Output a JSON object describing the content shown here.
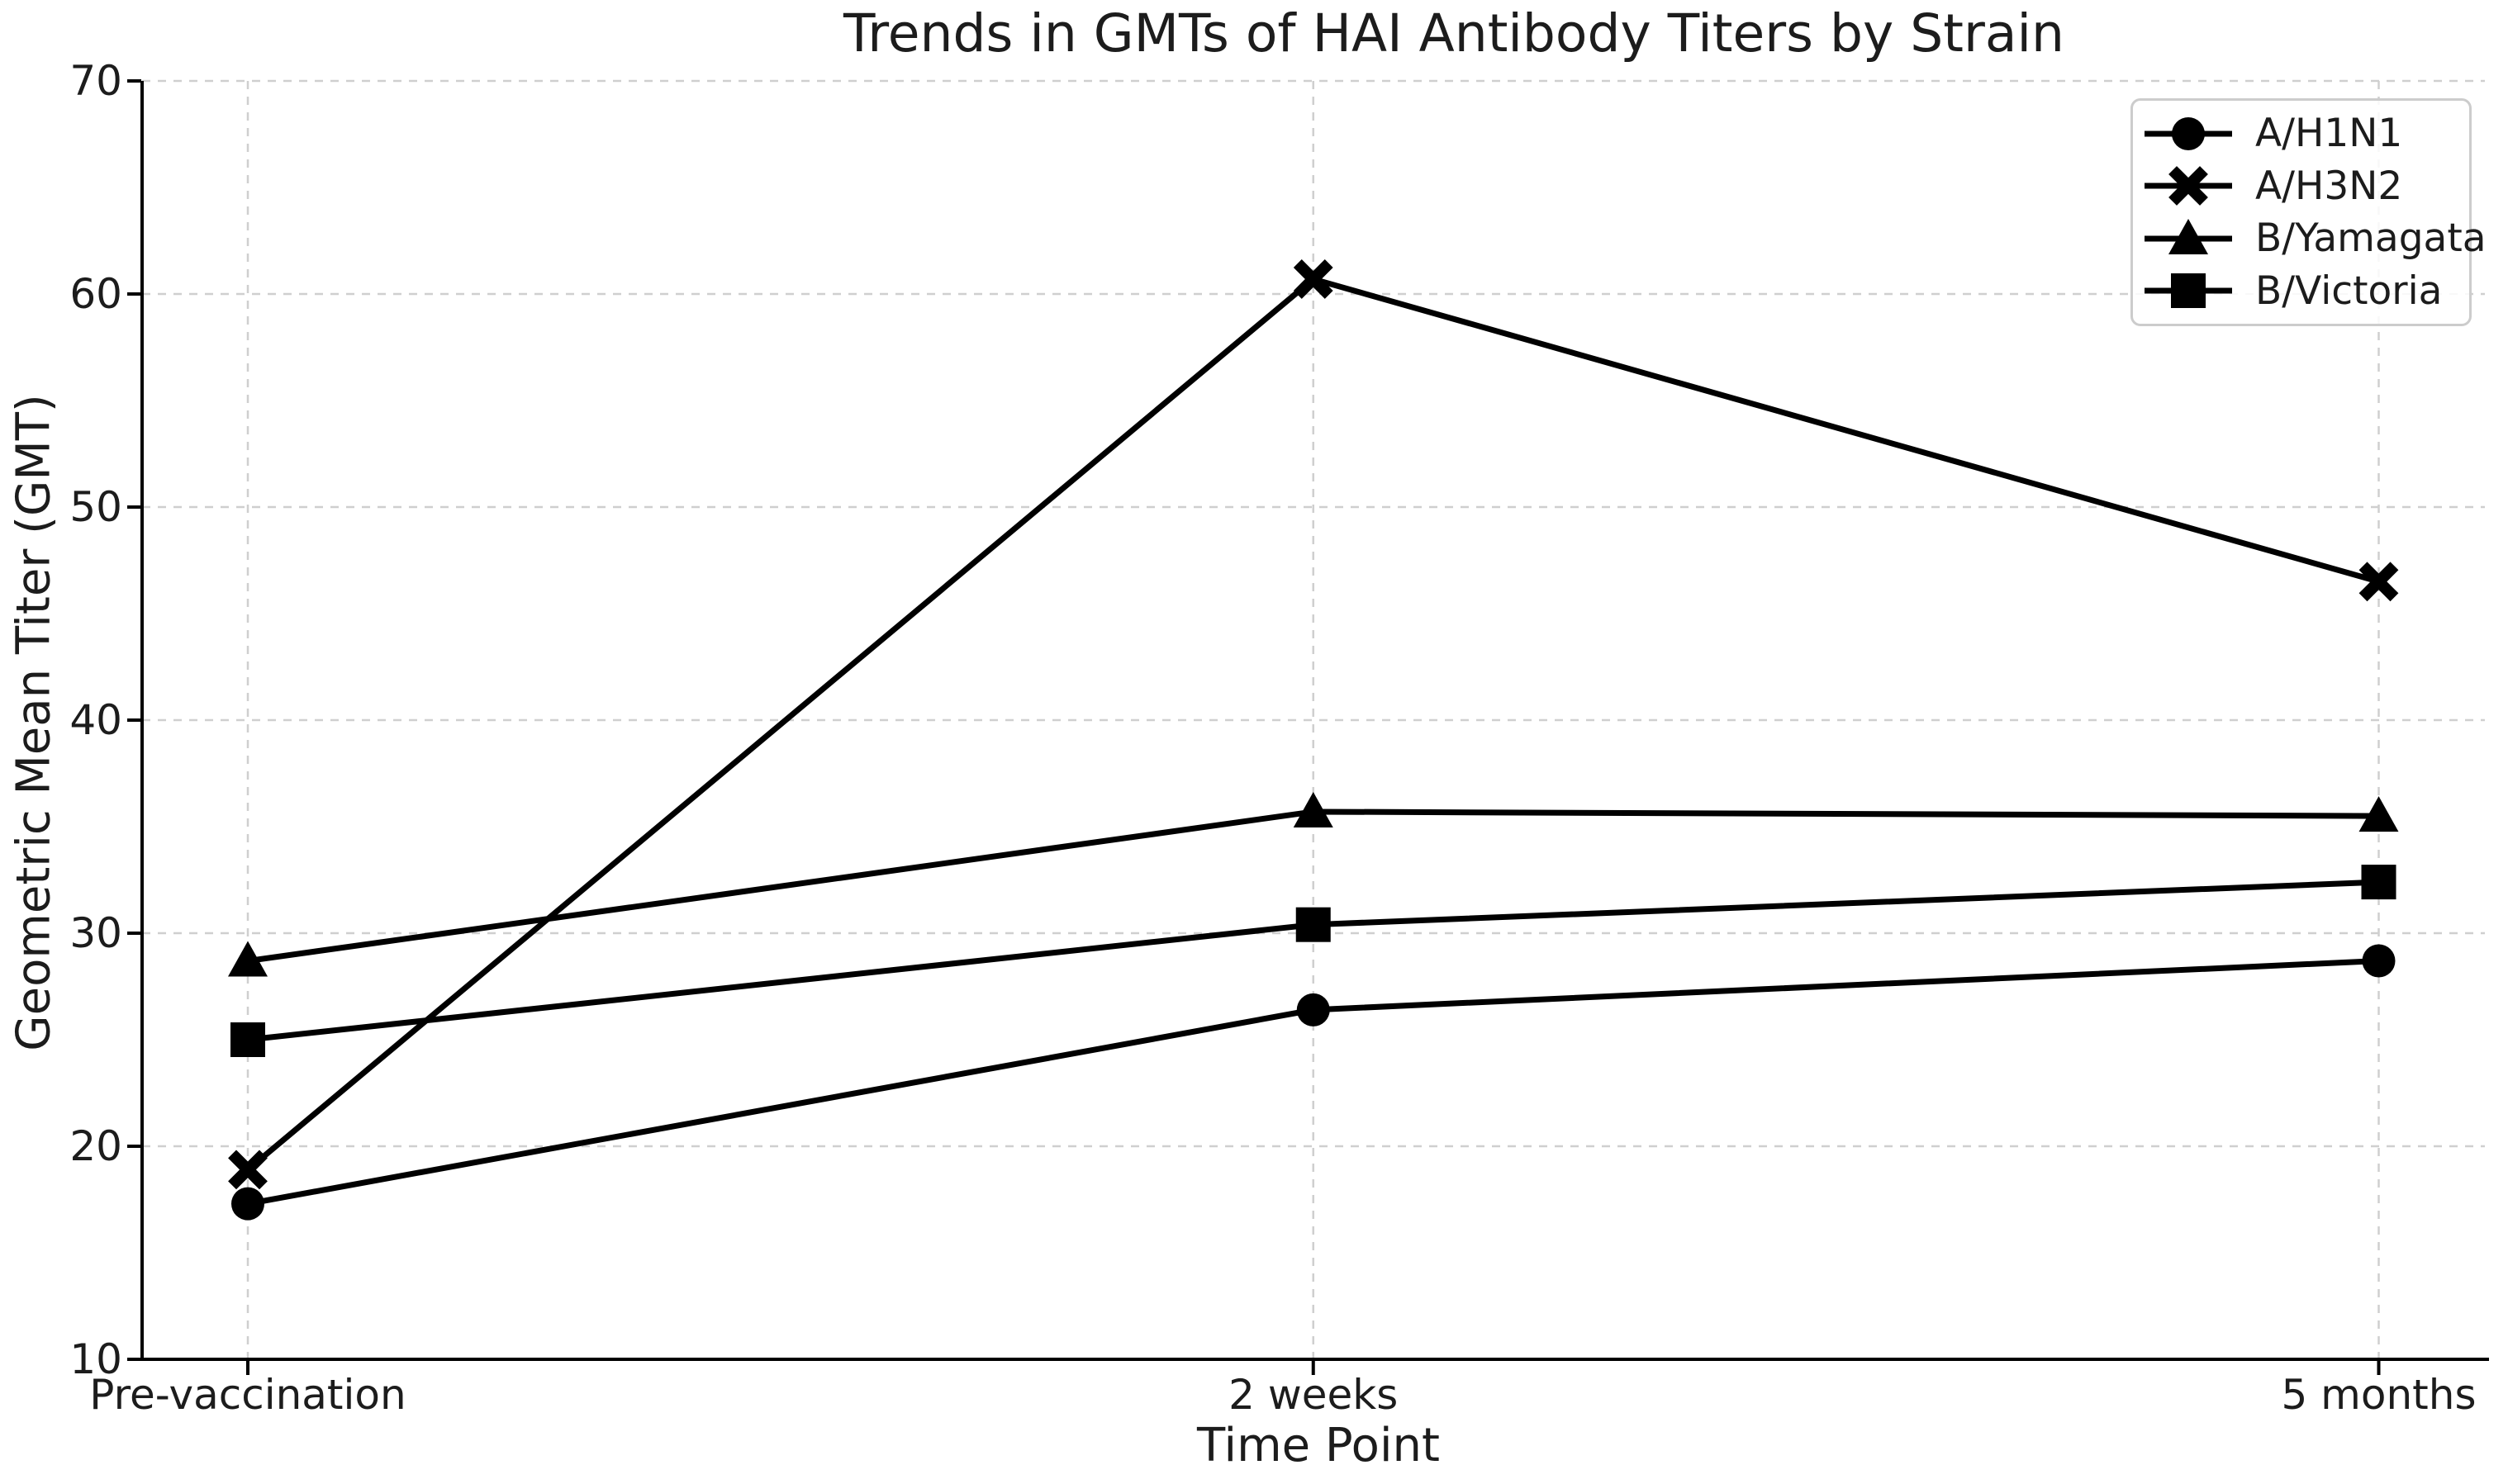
{
  "page": {
    "background": "#ffffff"
  },
  "chart_data": {
    "type": "line",
    "title": "Trends in GMTs of HAI Antibody Titers by Strain",
    "xlabel": "Time Point",
    "ylabel": "Geometric Mean Titer (GMT)",
    "categories": [
      "Pre-vaccination",
      "2 weeks",
      "5 months"
    ],
    "yticks": [
      10,
      20,
      30,
      40,
      50,
      60,
      70
    ],
    "ylim": [
      10,
      70
    ],
    "grid": {
      "shown": true,
      "style": "dashed",
      "axes": "both"
    },
    "legend": {
      "position": "upper-right",
      "entries": [
        "A/H1N1",
        "A/H3N2",
        "B/Yamagata",
        "B/Victoria"
      ]
    },
    "series": [
      {
        "name": "A/H1N1",
        "marker": "circle",
        "values": [
          17.3,
          26.4,
          28.7
        ]
      },
      {
        "name": "A/H3N2",
        "marker": "x",
        "values": [
          18.9,
          60.7,
          46.5
        ]
      },
      {
        "name": "B/Yamagata",
        "marker": "triangle",
        "values": [
          28.7,
          35.7,
          35.5
        ]
      },
      {
        "name": "B/Victoria",
        "marker": "square",
        "values": [
          25.0,
          30.4,
          32.4
        ]
      }
    ],
    "colors": {
      "series": "#000000",
      "grid": "#cfcfcf",
      "spine": "#000000",
      "text": "#1c1c1c",
      "legend_border": "#cccccc",
      "background": "#ffffff"
    }
  }
}
